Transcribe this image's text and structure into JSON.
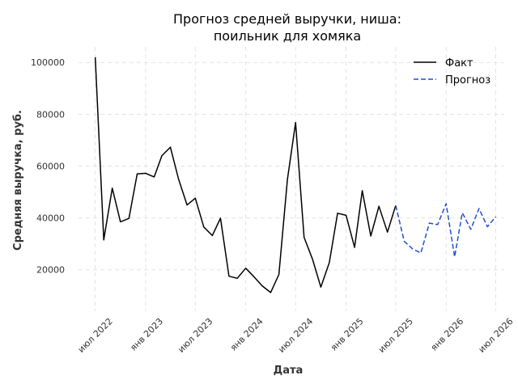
{
  "chart_data": {
    "type": "line",
    "title_lines": [
      "Прогноз средней выручки, ниша:",
      "поильник для хомяка"
    ],
    "xlabel": "Дата",
    "ylabel": "Средняя выручка, руб.",
    "x_ticks": [
      "июл 2022",
      "янв 2023",
      "июл 2023",
      "янв 2024",
      "июл 2024",
      "янв 2025",
      "июл 2025",
      "янв 2026",
      "июл 2026"
    ],
    "y_ticks": [
      "20000",
      "40000",
      "60000",
      "80000",
      "100000"
    ],
    "ylim": [
      4000,
      106000
    ],
    "xlim": [
      "2022-05-01",
      "2026-08-01"
    ],
    "grid": true,
    "legend_position": "top-right",
    "series": [
      {
        "name": "Факт",
        "color": "#000000",
        "style": "solid",
        "points": [
          [
            "2022-07-01",
            102000
          ],
          [
            "2022-08-01",
            31500
          ],
          [
            "2022-09-01",
            51500
          ],
          [
            "2022-10-01",
            38500
          ],
          [
            "2022-11-01",
            39800
          ],
          [
            "2022-12-01",
            57000
          ],
          [
            "2023-01-01",
            57200
          ],
          [
            "2023-02-01",
            55800
          ],
          [
            "2023-03-01",
            64000
          ],
          [
            "2023-04-01",
            67300
          ],
          [
            "2023-05-01",
            55000
          ],
          [
            "2023-06-01",
            45000
          ],
          [
            "2023-07-01",
            47600
          ],
          [
            "2023-08-01",
            36500
          ],
          [
            "2023-09-01",
            33200
          ],
          [
            "2023-10-01",
            39900
          ],
          [
            "2023-11-01",
            17500
          ],
          [
            "2023-12-01",
            16700
          ],
          [
            "2024-01-01",
            20600
          ],
          [
            "2024-02-01",
            17200
          ],
          [
            "2024-03-01",
            13800
          ],
          [
            "2024-04-01",
            11200
          ],
          [
            "2024-05-01",
            18200
          ],
          [
            "2024-06-01",
            54800
          ],
          [
            "2024-07-01",
            76800
          ],
          [
            "2024-08-01",
            32500
          ],
          [
            "2024-09-01",
            24000
          ],
          [
            "2024-10-01",
            13300
          ],
          [
            "2024-11-01",
            22800
          ],
          [
            "2024-12-01",
            41800
          ],
          [
            "2025-01-01",
            41000
          ],
          [
            "2025-02-01",
            28600
          ],
          [
            "2025-03-01",
            50500
          ],
          [
            "2025-04-01",
            33000
          ],
          [
            "2025-05-01",
            44500
          ],
          [
            "2025-06-01",
            34500
          ],
          [
            "2025-07-01",
            44800
          ]
        ]
      },
      {
        "name": "Прогноз",
        "color": "#1f4fd6",
        "style": "dashed",
        "points": [
          [
            "2025-07-01",
            44800
          ],
          [
            "2025-08-01",
            31000
          ],
          [
            "2025-09-01",
            28000
          ],
          [
            "2025-10-01",
            26500
          ],
          [
            "2025-11-01",
            38000
          ],
          [
            "2025-12-01",
            37400
          ],
          [
            "2026-01-01",
            45500
          ],
          [
            "2026-02-01",
            25000
          ],
          [
            "2026-03-01",
            42000
          ],
          [
            "2026-04-01",
            35600
          ],
          [
            "2026-05-01",
            43600
          ],
          [
            "2026-06-01",
            36600
          ],
          [
            "2026-07-01",
            40500
          ]
        ]
      }
    ]
  }
}
